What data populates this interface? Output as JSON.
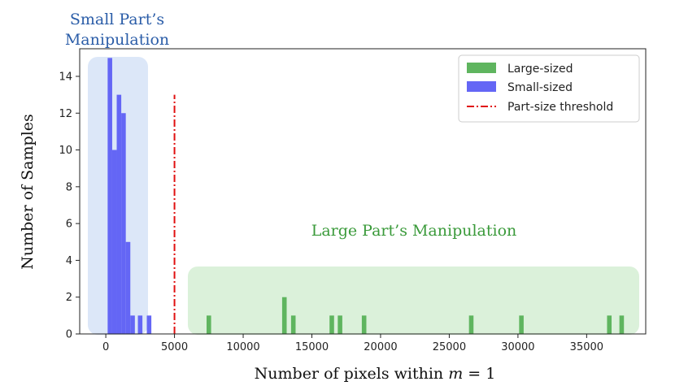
{
  "chart_data": {
    "type": "bar",
    "xlabel": "Number of pixels within m = 1",
    "xlabel_parts": {
      "prefix": "Number of pixels within ",
      "var": "m",
      "rest": " = 1"
    },
    "ylabel": "Number of Samples",
    "xlim": [
      -1900,
      39300
    ],
    "ylim": [
      0,
      15.5
    ],
    "xticks": [
      0,
      5000,
      10000,
      15000,
      20000,
      25000,
      30000,
      35000
    ],
    "yticks": [
      0,
      2,
      4,
      6,
      8,
      10,
      12,
      14
    ],
    "bin_width": 330,
    "series": [
      {
        "name": "Large-sized",
        "color": "#5fb55f",
        "bars": [
          {
            "x": 7500,
            "value": 1
          },
          {
            "x": 13000,
            "value": 2
          },
          {
            "x": 13650,
            "value": 1
          },
          {
            "x": 16450,
            "value": 1
          },
          {
            "x": 17050,
            "value": 1
          },
          {
            "x": 18800,
            "value": 1
          },
          {
            "x": 26600,
            "value": 1
          },
          {
            "x": 30250,
            "value": 1
          },
          {
            "x": 36650,
            "value": 1
          },
          {
            "x": 37550,
            "value": 1
          }
        ]
      },
      {
        "name": "Small-sized",
        "color": "#6466f5",
        "bars": [
          {
            "x": 300,
            "value": 15
          },
          {
            "x": 630,
            "value": 10
          },
          {
            "x": 960,
            "value": 13
          },
          {
            "x": 1290,
            "value": 12
          },
          {
            "x": 1620,
            "value": 5
          },
          {
            "x": 1950,
            "value": 1
          },
          {
            "x": 2500,
            "value": 1
          },
          {
            "x": 3150,
            "value": 1
          }
        ]
      }
    ],
    "threshold": {
      "name": "Part-size threshold",
      "x": 5000,
      "y_top": 13,
      "color": "#e01010"
    },
    "legend_position": "upper right",
    "grid": false,
    "annotations": {
      "small": {
        "lines": [
          "Small Part’s",
          "Manipulation"
        ],
        "color": "#2b5da8",
        "region_color": "#d6e3f7"
      },
      "large": {
        "text": "Large Part’s Manipulation",
        "color": "#3a9a3a",
        "region_color": "#d5efd3"
      }
    }
  }
}
